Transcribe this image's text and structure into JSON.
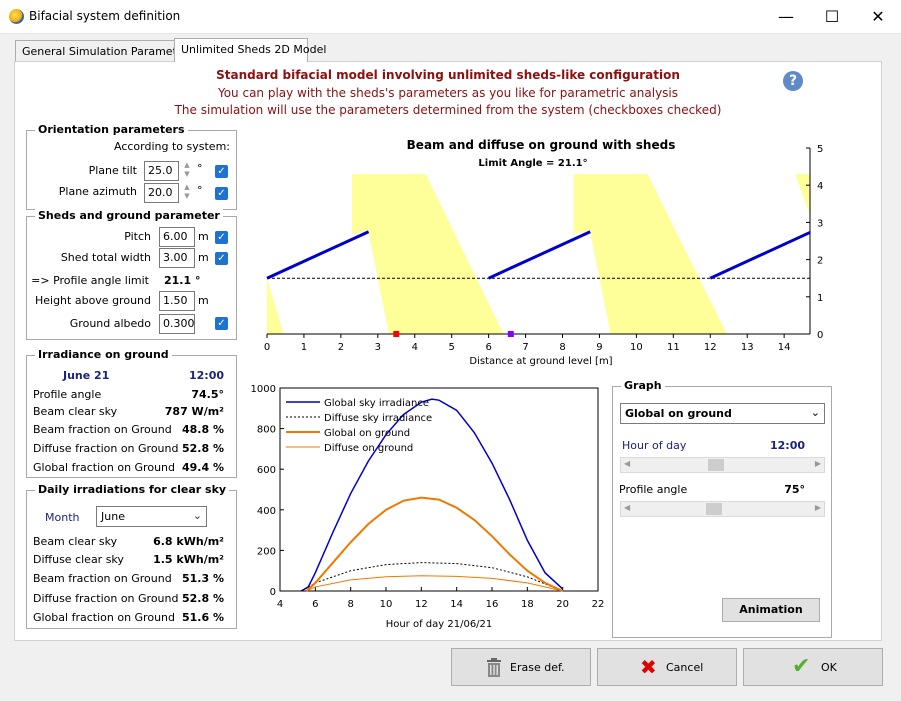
{
  "window": {
    "title": "Bifacial system definition"
  },
  "tabs": [
    {
      "label": "General Simulation Parameters"
    },
    {
      "label": "Unlimited Sheds 2D Model"
    }
  ],
  "header": {
    "line1": "Standard bifacial model involving unlimited sheds-like configuration",
    "line2": "You can play with the sheds's parameters as you like for parametric analysis",
    "line3": "The simulation will use the parameters determined from the system (checkboxes checked)",
    "help": "?"
  },
  "orientation": {
    "title": "Orientation parameters",
    "according": "According to system:",
    "tilt_label": "Plane tilt",
    "tilt": "25.0",
    "azimuth_label": "Plane azimuth",
    "azimuth": "20.0",
    "unit": "°"
  },
  "sheds": {
    "title": "Sheds and ground parameter",
    "pitch_label": "Pitch",
    "pitch": "6.00",
    "width_label": "Shed total width",
    "width": "3.00",
    "profile_label": "=> Profile angle limit",
    "profile": "21.1 °",
    "height_label": "Height above ground",
    "height": "1.50",
    "albedo_label": "Ground albedo",
    "albedo": "0.300",
    "unit_m": "m"
  },
  "irradiance": {
    "title": "Irradiance on ground",
    "date": "June 21",
    "time": "12:00",
    "rows": [
      {
        "label": "Profile angle",
        "value": "74.5°"
      },
      {
        "label": "Beam clear sky",
        "value": "787 W/m²"
      },
      {
        "label": "Beam fraction on Ground",
        "value": "48.8 %"
      },
      {
        "label": "Diffuse fraction on Ground",
        "value": "52.8 %"
      },
      {
        "label": "Global fraction on Ground",
        "value": "49.4 %"
      }
    ]
  },
  "daily": {
    "title": "Daily irradiations for clear sky",
    "month_label": "Month",
    "month": "June",
    "rows": [
      {
        "label": "Beam clear sky",
        "value": "6.8 kWh/m²"
      },
      {
        "label": "Diffuse clear sky",
        "value": "1.5 kWh/m²"
      },
      {
        "label": "Beam fraction on Ground",
        "value": "51.3 %"
      },
      {
        "label": "Diffuse fraction on Ground",
        "value": "52.8 %"
      },
      {
        "label": "Global fraction on Ground",
        "value": "51.6 %"
      }
    ]
  },
  "graph": {
    "title": "Graph",
    "selected": "Global on ground",
    "hour_label": "Hour of day",
    "hour": "12:00",
    "hour_fraction": 0.46,
    "profile_label": "Profile angle",
    "profile": "75°",
    "profile_fraction": 0.45,
    "animation": "Animation"
  },
  "buttons": {
    "erase": "Erase def.",
    "cancel": "Cancel",
    "ok": "OK"
  },
  "colors": {
    "blue": "#0000cc",
    "orange": "#f07800",
    "yellow": "#ffff99",
    "title_red": "#8b1010"
  },
  "chart_data": [
    {
      "type": "diagram",
      "title": "Beam and diffuse on ground with sheds",
      "subtitle": "Limit Angle = 21.1°",
      "xlabel": "Distance at ground level [m]",
      "xlim": [
        0,
        14.7
      ],
      "ylim": [
        0,
        5
      ],
      "xticks": [
        0,
        1,
        2,
        3,
        4,
        5,
        6,
        7,
        8,
        9,
        10,
        11,
        12,
        13,
        14
      ],
      "yticks": [
        0,
        1,
        2,
        3,
        4,
        5
      ],
      "limit_line_y": 1.5,
      "sheds": [
        {
          "x1": 0,
          "y1": 1.5,
          "x2": 2.75,
          "y2": 2.75
        },
        {
          "x1": 6,
          "y1": 1.5,
          "x2": 8.75,
          "y2": 2.75
        },
        {
          "x1": 12,
          "y1": 1.5,
          "x2": 14.7,
          "y2": 2.73
        }
      ],
      "shadows": [
        {
          "points": [
            [
              0,
              1.5
            ],
            [
              0.45,
              0
            ],
            [
              0,
              0
            ]
          ]
        },
        {
          "points": [
            [
              2.3,
              4.3
            ],
            [
              4.3,
              4.3
            ],
            [
              6.4,
              0
            ],
            [
              3.3,
              0
            ],
            [
              2.75,
              2.75
            ],
            [
              2.3,
              2.7
            ]
          ]
        },
        {
          "points": [
            [
              8.3,
              4.3
            ],
            [
              10.3,
              4.3
            ],
            [
              12.45,
              0
            ],
            [
              9.3,
              0
            ],
            [
              8.75,
              2.75
            ],
            [
              8.3,
              2.7
            ]
          ]
        },
        {
          "points": [
            [
              14.3,
              4.3
            ],
            [
              14.7,
              4.3
            ],
            [
              14.7,
              3.2
            ]
          ]
        }
      ],
      "markers": [
        {
          "x": 3.5,
          "color": "#ff0000"
        },
        {
          "x": 6.6,
          "color": "#8800ff"
        }
      ]
    },
    {
      "type": "line",
      "xlabel": "Hour of day 21/06/21",
      "xlim": [
        4,
        22
      ],
      "ylim": [
        0,
        1000
      ],
      "xticks": [
        4,
        6,
        8,
        10,
        12,
        14,
        16,
        18,
        20,
        22
      ],
      "yticks": [
        0,
        200,
        400,
        600,
        800,
        1000
      ],
      "series": [
        {
          "name": "Global sky irradiance",
          "color": "#0000cc",
          "width": 1.5,
          "dash": "",
          "x": [
            5.2,
            5.6,
            6,
            7,
            8,
            9,
            10,
            11,
            12,
            12.6,
            13,
            14,
            15,
            16,
            17,
            18,
            19,
            20
          ],
          "y": [
            0,
            20,
            90,
            290,
            480,
            640,
            770,
            870,
            930,
            945,
            940,
            890,
            780,
            630,
            450,
            250,
            90,
            10
          ]
        },
        {
          "name": "Diffuse sky irradiance",
          "color": "#000000",
          "width": 1,
          "dash": "2,2",
          "x": [
            5.2,
            6,
            8,
            10,
            12,
            14,
            16,
            18,
            20
          ],
          "y": [
            0,
            40,
            100,
            130,
            140,
            135,
            115,
            70,
            0
          ]
        },
        {
          "name": "Global on ground",
          "color": "#f07800",
          "width": 2,
          "dash": "",
          "x": [
            5.5,
            6,
            7,
            8,
            9,
            10,
            11,
            12,
            13,
            14,
            15,
            16,
            17,
            18,
            19,
            20
          ],
          "y": [
            0,
            40,
            140,
            240,
            330,
            400,
            445,
            460,
            450,
            410,
            350,
            270,
            180,
            100,
            40,
            0
          ]
        },
        {
          "name": "Diffuse on ground",
          "color": "#f07800",
          "width": 1,
          "dash": "",
          "x": [
            5.5,
            6,
            8,
            10,
            12,
            14,
            16,
            18,
            20
          ],
          "y": [
            0,
            20,
            55,
            70,
            75,
            72,
            62,
            40,
            0
          ]
        }
      ]
    }
  ]
}
